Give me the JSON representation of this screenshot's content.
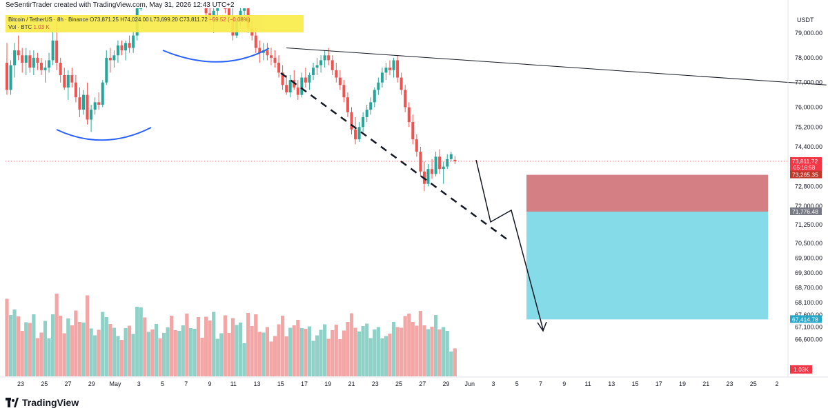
{
  "credit": "SeSentirTrader created with TradingView.com, May 31, 2026 12:43 UTC+2",
  "legend": {
    "symbol_line": "Bitcoin / TetherUS · 8h · Binance",
    "ohlc": "O73,871.25 H74,024.00 L73,699.20 C73,811.72",
    "change": "−59.52 (−0.08%)",
    "volume_label": "Vol · BTC",
    "volume_value": "1.03 K"
  },
  "brand": "TradingView",
  "chart_data": {
    "type": "candlestick",
    "currency": "USDT",
    "price_axis": {
      "ticks": [
        79000,
        78000,
        77000,
        76000,
        75200,
        74400,
        72800,
        72000,
        71250,
        70500,
        69900,
        69300,
        68700,
        68100,
        67600,
        67100,
        66600
      ],
      "tick_labels": [
        "79,000.00",
        "78,000.00",
        "77,000.00",
        "76,000.00",
        "75,200.00",
        "74,400.00",
        "72,800.00",
        "72,000.00",
        "71,250.00",
        "70,500.00",
        "69,900.00",
        "69,300.00",
        "68,700.00",
        "68,100.00",
        "67,600.00",
        "67,100.00",
        "66,600.00"
      ],
      "range": [
        65000,
        80000
      ]
    },
    "time_axis": {
      "labels": [
        "23",
        "25",
        "27",
        "29",
        "May",
        "3",
        "5",
        "7",
        "9",
        "11",
        "13",
        "15",
        "17",
        "19",
        "21",
        "23",
        "25",
        "27",
        "29",
        "Jun",
        "3",
        "5",
        "7",
        "9",
        "11",
        "13",
        "15",
        "17",
        "19",
        "21",
        "23",
        "25",
        "2"
      ]
    },
    "price_labels": [
      {
        "value": 73811.72,
        "text": "73,811.72",
        "sub": "05:16:58",
        "color": "#f23645"
      },
      {
        "value": 73265.35,
        "text": "73,265.35",
        "color": "#c0392b"
      },
      {
        "value": 71776.48,
        "text": "71,776.48",
        "color": "#787b86"
      },
      {
        "value": 67414.78,
        "text": "67,414.78",
        "color": "#26a8c9"
      }
    ],
    "volume_label": "1.03K",
    "candles": [
      [
        77800,
        78600,
        76500,
        76700
      ],
      [
        76700,
        77900,
        76500,
        77700
      ],
      [
        77700,
        78600,
        77200,
        78300
      ],
      [
        78300,
        78900,
        77900,
        78100
      ],
      [
        78100,
        78400,
        77400,
        77800
      ],
      [
        77800,
        78400,
        77300,
        78100
      ],
      [
        78100,
        78300,
        77400,
        77600
      ],
      [
        77600,
        78300,
        77300,
        78000
      ],
      [
        78000,
        78200,
        77500,
        77800
      ],
      [
        77800,
        78000,
        77300,
        77500
      ],
      [
        77500,
        77900,
        77000,
        77600
      ],
      [
        77600,
        78200,
        77400,
        77900
      ],
      [
        77900,
        79100,
        77700,
        78700
      ],
      [
        78700,
        79600,
        77500,
        77800
      ],
      [
        77800,
        78000,
        77000,
        77300
      ],
      [
        77300,
        77600,
        76700,
        76800
      ],
      [
        76800,
        77500,
        76300,
        77300
      ],
      [
        77300,
        77600,
        76800,
        77000
      ],
      [
        77000,
        77300,
        76200,
        76400
      ],
      [
        76400,
        76800,
        75600,
        75900
      ],
      [
        75900,
        76700,
        75700,
        76500
      ],
      [
        76500,
        77000,
        75300,
        75500
      ],
      [
        75500,
        76100,
        75000,
        75900
      ],
      [
        75900,
        76400,
        75700,
        76200
      ],
      [
        76200,
        76600,
        75900,
        76100
      ],
      [
        76100,
        77100,
        76000,
        77000
      ],
      [
        77000,
        78300,
        76900,
        78000
      ],
      [
        78000,
        78400,
        77400,
        77900
      ],
      [
        77900,
        78300,
        77600,
        78100
      ],
      [
        78100,
        78700,
        77800,
        78500
      ],
      [
        78500,
        78700,
        78100,
        78300
      ],
      [
        78300,
        78700,
        77900,
        78600
      ],
      [
        78600,
        78900,
        78200,
        78400
      ],
      [
        78400,
        79100,
        78200,
        78900
      ],
      [
        78900,
        80300,
        78700,
        80100
      ],
      [
        80100,
        81300,
        79900,
        81000
      ],
      [
        81000,
        81400,
        80500,
        80800
      ],
      [
        80800,
        81600,
        80700,
        81400
      ],
      [
        81400,
        81700,
        80900,
        81200
      ],
      [
        81200,
        81600,
        80800,
        81300
      ],
      [
        81300,
        81500,
        80700,
        80900
      ],
      [
        80900,
        81400,
        80600,
        81200
      ],
      [
        81200,
        81800,
        81000,
        81500
      ],
      [
        81500,
        81800,
        80800,
        81000
      ],
      [
        81000,
        81300,
        80300,
        80500
      ],
      [
        80500,
        81200,
        80400,
        81100
      ],
      [
        81100,
        81700,
        80900,
        81400
      ],
      [
        81400,
        81600,
        80600,
        80800
      ],
      [
        80800,
        81300,
        80300,
        81000
      ],
      [
        81000,
        81600,
        80800,
        81300
      ],
      [
        81300,
        81500,
        80500,
        80700
      ],
      [
        80700,
        81200,
        80400,
        80600
      ],
      [
        80600,
        80900,
        79600,
        79800
      ],
      [
        79800,
        80300,
        79300,
        79500
      ],
      [
        79500,
        80100,
        79000,
        79900
      ],
      [
        79900,
        80400,
        79700,
        80300
      ],
      [
        80300,
        80800,
        80100,
        80600
      ],
      [
        80600,
        80900,
        79800,
        80000
      ],
      [
        80000,
        80500,
        79500,
        79700
      ],
      [
        79700,
        80000,
        78700,
        78900
      ],
      [
        78900,
        79700,
        78800,
        79500
      ],
      [
        79500,
        80100,
        79300,
        79900
      ],
      [
        79900,
        80200,
        79600,
        80000
      ],
      [
        80000,
        80400,
        79000,
        79200
      ],
      [
        79200,
        79500,
        78700,
        78900
      ],
      [
        78900,
        79200,
        78200,
        78400
      ],
      [
        78400,
        78700,
        77800,
        78200
      ],
      [
        78200,
        78600,
        77900,
        78300
      ],
      [
        78300,
        78600,
        77900,
        78100
      ],
      [
        78100,
        78400,
        77700,
        78000
      ],
      [
        78000,
        78300,
        77600,
        77800
      ],
      [
        77800,
        78100,
        77200,
        77400
      ],
      [
        77400,
        77700,
        76700,
        76900
      ],
      [
        76900,
        77300,
        76500,
        76600
      ],
      [
        76600,
        77300,
        76400,
        77100
      ],
      [
        77100,
        77500,
        76700,
        76800
      ],
      [
        76800,
        77100,
        76300,
        76500
      ],
      [
        76500,
        77400,
        76400,
        77200
      ],
      [
        77200,
        77600,
        76800,
        77000
      ],
      [
        77000,
        77400,
        76700,
        77300
      ],
      [
        77300,
        77800,
        77100,
        77600
      ],
      [
        77600,
        78000,
        77300,
        77700
      ],
      [
        77700,
        78100,
        77400,
        77900
      ],
      [
        77900,
        78300,
        77600,
        78100
      ],
      [
        78100,
        78400,
        77700,
        77900
      ],
      [
        77900,
        78100,
        77300,
        77500
      ],
      [
        77500,
        77800,
        77000,
        77200
      ],
      [
        77200,
        77500,
        76700,
        76900
      ],
      [
        76900,
        77100,
        76200,
        76400
      ],
      [
        76400,
        76600,
        75600,
        75800
      ],
      [
        75800,
        76000,
        74900,
        75100
      ],
      [
        75100,
        75600,
        74500,
        74700
      ],
      [
        74700,
        75400,
        74600,
        75200
      ],
      [
        75200,
        75800,
        75000,
        75600
      ],
      [
        75600,
        76100,
        75400,
        75900
      ],
      [
        75900,
        76400,
        75700,
        76200
      ],
      [
        76200,
        76800,
        76000,
        76700
      ],
      [
        76700,
        77200,
        76500,
        77000
      ],
      [
        77000,
        77600,
        76800,
        77400
      ],
      [
        77400,
        77800,
        77100,
        77600
      ],
      [
        77600,
        77900,
        77300,
        77500
      ],
      [
        77500,
        78000,
        77200,
        77900
      ],
      [
        77900,
        78100,
        77000,
        77200
      ],
      [
        77200,
        77400,
        76500,
        76700
      ],
      [
        76700,
        76900,
        75800,
        76000
      ],
      [
        76000,
        76200,
        75200,
        75400
      ],
      [
        75400,
        75700,
        74500,
        74700
      ],
      [
        74700,
        74900,
        74000,
        74200
      ],
      [
        74200,
        74400,
        73200,
        73400
      ],
      [
        73400,
        73800,
        72600,
        72900
      ],
      [
        72900,
        73700,
        72800,
        73500
      ],
      [
        73500,
        73900,
        73100,
        73300
      ],
      [
        73300,
        74200,
        73200,
        74000
      ],
      [
        74000,
        74300,
        73300,
        73500
      ],
      [
        73500,
        73800,
        72900,
        73600
      ],
      [
        73600,
        74100,
        73500,
        73900
      ],
      [
        73900,
        74200,
        73800,
        74100
      ],
      [
        73871,
        74024,
        73699,
        73812
      ]
    ],
    "patterns": [
      {
        "type": "curve",
        "label": "rounding bottom",
        "color": "#2962ff"
      },
      {
        "type": "curve",
        "label": "rounding top",
        "color": "#2962ff"
      },
      {
        "type": "trendline",
        "style": "solid",
        "from": {
          "bar": 73,
          "price": 78400
        },
        "to": {
          "bar": 214,
          "price": 76900
        }
      },
      {
        "type": "trendline",
        "style": "dashed",
        "from": {
          "bar": 68,
          "price": 77800
        },
        "to": {
          "bar": 182,
          "price": 70600
        }
      }
    ],
    "projection": [
      {
        "bar": 113,
        "price": 73800
      },
      {
        "bar": 120,
        "price": 71500
      },
      {
        "bar": 123,
        "price": 71900
      },
      {
        "bar": 131,
        "price": 67500
      }
    ],
    "position_tool": {
      "entry": 71776.48,
      "stop": 73265.35,
      "target": 67414.78,
      "stop_color": "#d47f84",
      "target_color": "#85dbe8"
    },
    "colors": {
      "up": "#26a69a",
      "down": "#ef5350",
      "vol_up": "#8fd0c7",
      "vol_down": "#f3a6a6"
    }
  }
}
